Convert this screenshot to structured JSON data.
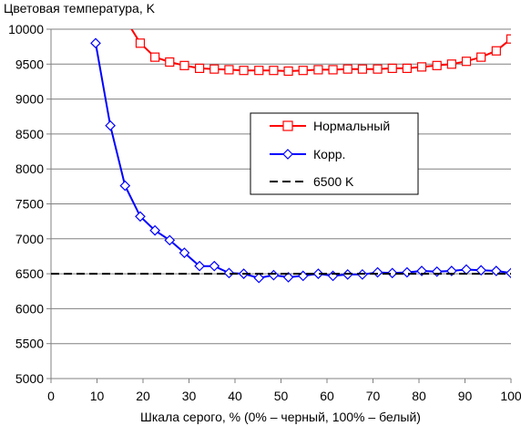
{
  "chart_data": {
    "type": "line",
    "ylabel": "Цветовая температура, K",
    "xlabel": "Шкала серого, % (0% – черный, 100% – белый)",
    "xlim": [
      0,
      100
    ],
    "ylim": [
      5000,
      10000
    ],
    "x_ticks": [
      "0",
      "10",
      "20",
      "30",
      "40",
      "50",
      "60",
      "70",
      "80",
      "90",
      "100"
    ],
    "y_ticks": [
      "5000",
      "5500",
      "6000",
      "6500",
      "7000",
      "7500",
      "8000",
      "8500",
      "9000",
      "9500",
      "10000"
    ],
    "grid": "horizontal",
    "legend_position": "center-right",
    "series": [
      {
        "name": "Нормальный",
        "color": "#ff0000",
        "marker": "square",
        "x": [
          12.9,
          16.1,
          19.4,
          22.6,
          25.8,
          29.0,
          32.3,
          35.5,
          38.7,
          41.9,
          45.2,
          48.4,
          51.6,
          54.8,
          58.1,
          61.3,
          64.5,
          67.7,
          71.0,
          74.2,
          77.4,
          80.6,
          83.9,
          87.1,
          90.3,
          93.5,
          96.8,
          100
        ],
        "y": [
          10500,
          10150,
          9800,
          9600,
          9530,
          9480,
          9440,
          9430,
          9420,
          9410,
          9410,
          9410,
          9400,
          9410,
          9420,
          9420,
          9430,
          9430,
          9430,
          9440,
          9440,
          9460,
          9480,
          9500,
          9540,
          9600,
          9690,
          9860
        ]
      },
      {
        "name": "Корр.",
        "color": "#0000ff",
        "marker": "diamond",
        "x": [
          9.7,
          12.9,
          16.1,
          19.4,
          22.6,
          25.8,
          29.0,
          32.3,
          35.5,
          38.7,
          41.9,
          45.2,
          48.4,
          51.6,
          54.8,
          58.1,
          61.3,
          64.5,
          67.7,
          71.0,
          74.2,
          77.4,
          80.6,
          83.9,
          87.1,
          90.3,
          93.5,
          96.8,
          100
        ],
        "y": [
          9800,
          8620,
          7760,
          7320,
          7120,
          6980,
          6800,
          6610,
          6610,
          6510,
          6500,
          6440,
          6480,
          6450,
          6470,
          6500,
          6470,
          6490,
          6490,
          6520,
          6510,
          6520,
          6540,
          6530,
          6540,
          6560,
          6550,
          6540,
          6510
        ]
      },
      {
        "name": "6500 K",
        "color": "#000000",
        "marker": "none",
        "dashed": true,
        "x": [
          0,
          100
        ],
        "y": [
          6500,
          6500
        ]
      }
    ]
  }
}
